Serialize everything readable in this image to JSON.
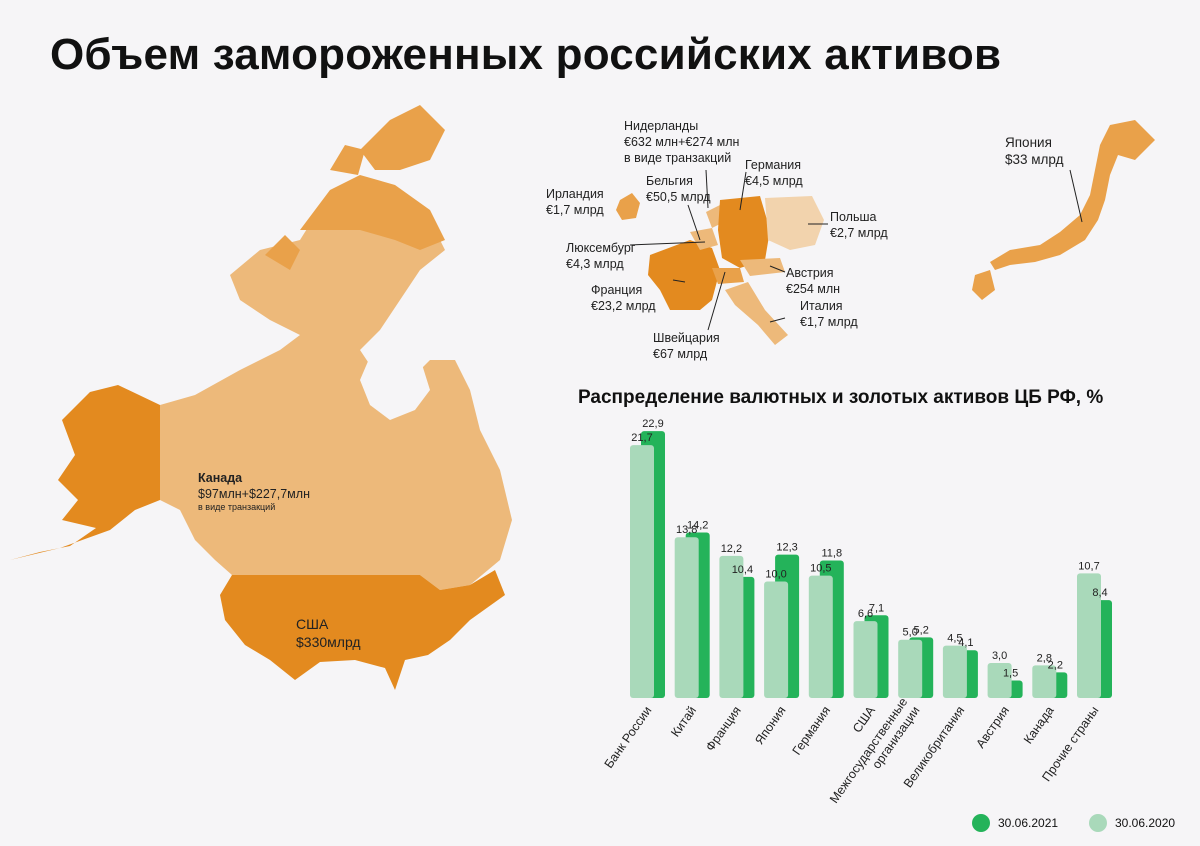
{
  "page": {
    "title": "Объем замороженных российских активов"
  },
  "colors": {
    "bar_2021": "#24b35a",
    "bar_2020": "#a9d9ba",
    "map_dark": "#e38a1f",
    "map_mid": "#e9a14a",
    "map_light": "#edb97a",
    "map_pale": "#f2d3ad"
  },
  "map_labels": {
    "canada": {
      "name": "Канада",
      "value": "$97млн+$227,7млн",
      "note": "в виде транзакций"
    },
    "usa": {
      "name": "США",
      "value": "$330млрд"
    },
    "netherlands": {
      "name": "Нидерланды",
      "value": "€632 млн+€274 млн",
      "note": "в виде транзакций"
    },
    "germany": {
      "name": "Германия",
      "value": "€4,5 млрд"
    },
    "belgium": {
      "name": "Бельгия",
      "value": "€50,5 млрд"
    },
    "ireland": {
      "name": "Ирландия",
      "value": "€1,7 млрд"
    },
    "poland": {
      "name": "Польша",
      "value": "€2,7 млрд"
    },
    "luxembourg": {
      "name": "Люксембург",
      "value": "€4,3 млрд"
    },
    "austria": {
      "name": "Австрия",
      "value": "€254 млн"
    },
    "france": {
      "name": "Франция",
      "value": "€23,2 млрд"
    },
    "italy": {
      "name": "Италия",
      "value": "€1,7 млрд"
    },
    "switzerland": {
      "name": "Швейцария",
      "value": "€67 млрд"
    },
    "japan": {
      "name": "Япония",
      "value": "$33 млрд"
    }
  },
  "chart_data": {
    "type": "bar",
    "title": "Распределение валютных и золотых активов ЦБ РФ, %",
    "categories": [
      "Банк России",
      "Китай",
      "Франция",
      "Япония",
      "Германия",
      "США",
      "Межгосударственные организации",
      "Великобритания",
      "Австрия",
      "Канада",
      "Прочие страны"
    ],
    "category_display": [
      [
        "Банк России"
      ],
      [
        "Китай"
      ],
      [
        "Франция"
      ],
      [
        "Япония"
      ],
      [
        "Германия"
      ],
      [
        "США"
      ],
      [
        "Межгосударственные",
        "организации"
      ],
      [
        "Великобритания"
      ],
      [
        "Австрия"
      ],
      [
        "Канада"
      ],
      [
        "Прочие страны"
      ]
    ],
    "series": [
      {
        "name": "30.06.2021",
        "values": [
          21.7,
          13.8,
          12.2,
          10.0,
          10.5,
          6.6,
          5.0,
          4.5,
          3.0,
          2.8,
          10.7
        ],
        "labels": [
          "21,7",
          "13,8",
          "12,2",
          "10,0",
          "10,5",
          "6,6",
          "5,0",
          "4,5",
          "3,0",
          "2,8",
          "10,7"
        ]
      },
      {
        "name": "30.06.2020",
        "values": [
          22.9,
          14.2,
          10.4,
          12.3,
          11.8,
          7.1,
          5.2,
          4.1,
          1.5,
          2.2,
          8.4
        ],
        "labels": [
          "22,9",
          "14,2",
          "10,4",
          "12,3",
          "11,8",
          "7,1",
          "5,2",
          "4,1",
          "1,5",
          "2,2",
          "8,4"
        ]
      }
    ],
    "ylim": [
      0,
      23
    ],
    "grid": false,
    "legend": "bottom-right"
  }
}
